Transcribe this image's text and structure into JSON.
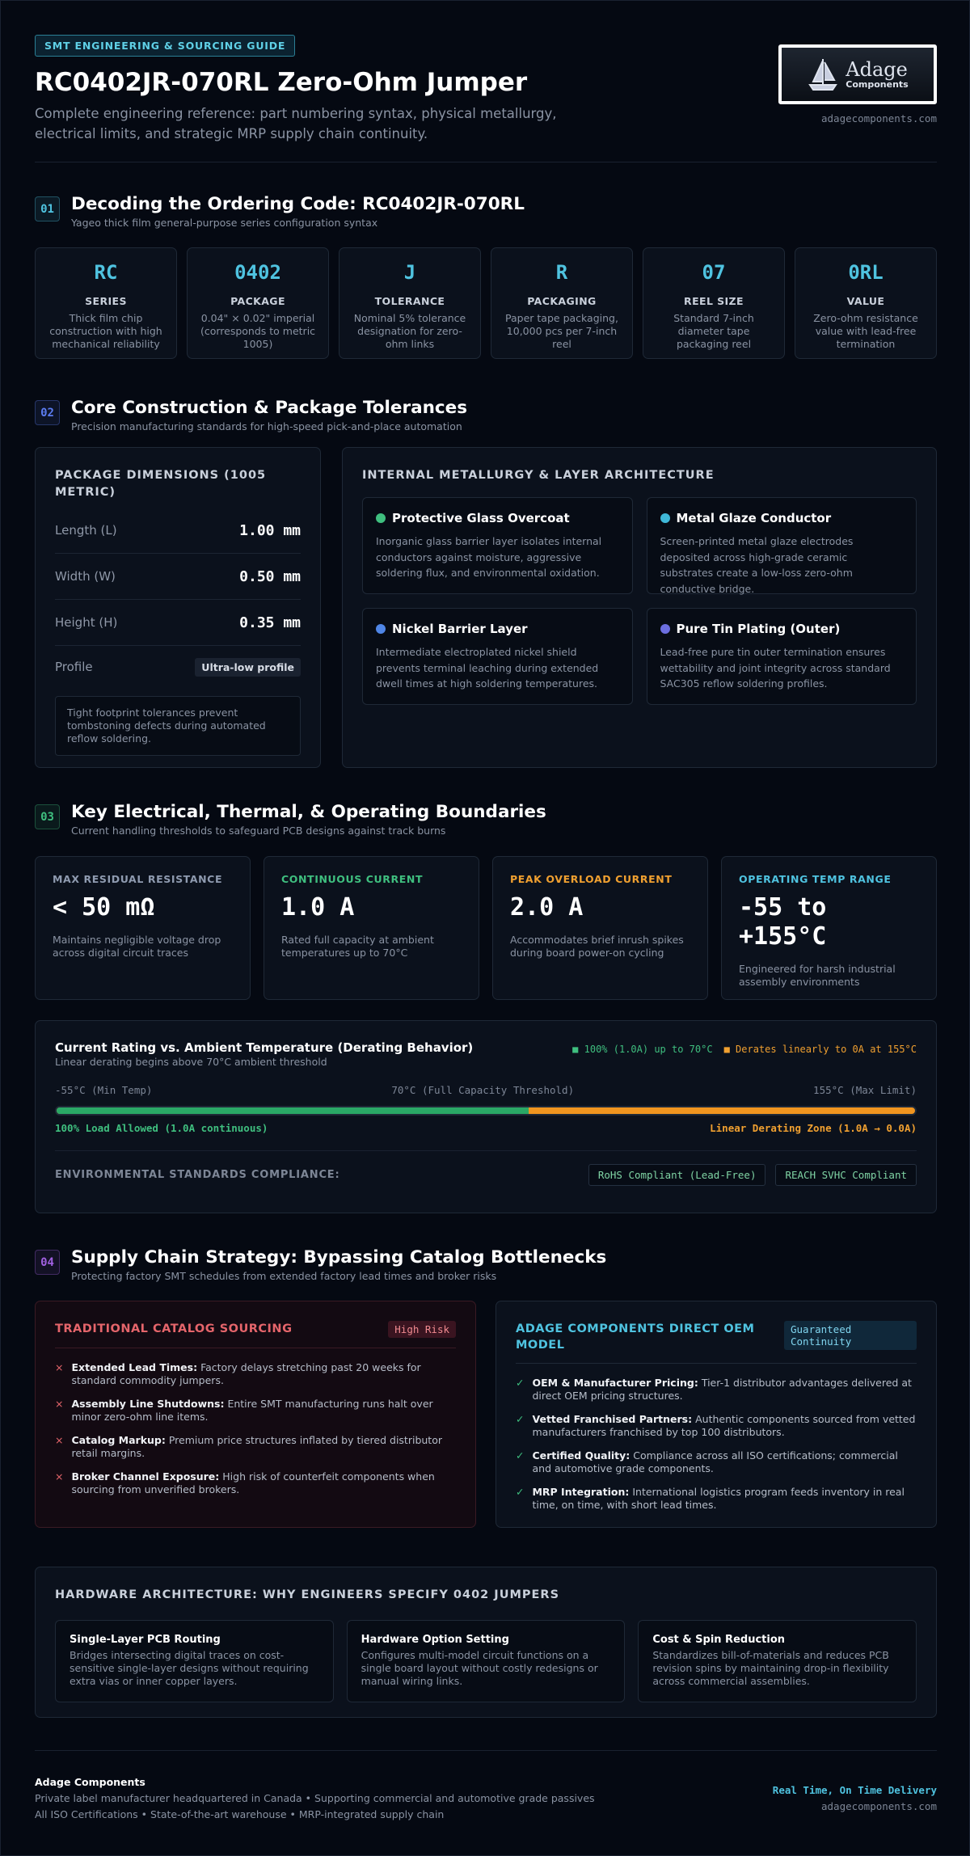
{
  "header": {
    "badge": "SMT ENGINEERING & SOURCING GUIDE",
    "title": "RC0402JR-070RL Zero-Ohm Jumper",
    "subtitle": "Complete engineering reference: part numbering syntax, physical metallurgy, electrical limits, and strategic MRP supply chain continuity.",
    "logo_name": "Adage",
    "logo_sub": "Components",
    "url": "adagecomponents.com"
  },
  "decoding": {
    "number": "01",
    "title": "Decoding the Ordering Code: RC0402JR-070RL",
    "subtitle": "Yageo thick film general-purpose series configuration syntax",
    "cards": [
      {
        "code": "RC",
        "label": "SERIES",
        "desc": "Thick film chip construction with high mechanical reliability"
      },
      {
        "code": "0402",
        "label": "PACKAGE",
        "desc": "0.04\" × 0.02\" imperial (corresponds to metric 1005)"
      },
      {
        "code": "J",
        "label": "TOLERANCE",
        "desc": "Nominal 5% tolerance designation for zero-ohm links"
      },
      {
        "code": "R",
        "label": "PACKAGING",
        "desc": "Paper tape packaging, 10,000 pcs per 7-inch reel"
      },
      {
        "code": "07",
        "label": "REEL SIZE",
        "desc": "Standard 7-inch diameter tape packaging reel"
      },
      {
        "code": "0RL",
        "label": "VALUE",
        "desc": "Zero-ohm resistance value with lead-free termination"
      }
    ]
  },
  "construction": {
    "number": "02",
    "title": "Core Construction & Package Tolerances",
    "subtitle": "Precision manufacturing standards for high-speed pick-and-place automation",
    "dimensions": {
      "title": "PACKAGE DIMENSIONS (1005 METRIC)",
      "rows": [
        {
          "label": "Length (L)",
          "value": "1.00 mm"
        },
        {
          "label": "Width (W)",
          "value": "0.50 mm"
        },
        {
          "label": "Height (H)",
          "value": "0.35 mm"
        }
      ],
      "profile_label": "Profile",
      "profile_value": "Ultra-low profile",
      "note": "Tight footprint tolerances prevent tombstoning defects during automated reflow soldering."
    },
    "metallurgy": {
      "title": "INTERNAL METALLURGY & LAYER ARCHITECTURE",
      "layers": [
        {
          "name": "Protective Glass Overcoat",
          "color": "#3fbf7f",
          "desc": "Inorganic glass barrier layer isolates internal conductors against moisture, aggressive soldering flux, and environmental oxidation."
        },
        {
          "name": "Metal Glaze Conductor",
          "color": "#3fb8d8",
          "desc": "Screen-printed metal glaze electrodes deposited across high-grade ceramic substrates create a low-loss zero-ohm conductive bridge."
        },
        {
          "name": "Nickel Barrier Layer",
          "color": "#4f86e6",
          "desc": "Intermediate electroplated nickel shield prevents terminal leaching during extended dwell times at high soldering temperatures."
        },
        {
          "name": "Pure Tin Plating (Outer)",
          "color": "#6c6fe0",
          "desc": "Lead-free pure tin outer termination ensures wettability and joint integrity across standard SAC305 reflow soldering profiles."
        }
      ]
    }
  },
  "electrical": {
    "number": "03",
    "title": "Key Electrical, Thermal, & Operating Boundaries",
    "subtitle": "Current handling thresholds to safeguard PCB designs against track burns",
    "metrics": [
      {
        "label": "MAX RESIDUAL RESISTANCE",
        "color": "#8f9bb0",
        "value": "< 50 mΩ",
        "desc": "Maintains negligible voltage drop across digital circuit traces"
      },
      {
        "label": "CONTINUOUS CURRENT",
        "color": "#3fbf7f",
        "value": "1.0 A",
        "desc": "Rated full capacity at ambient temperatures up to 70°C"
      },
      {
        "label": "PEAK OVERLOAD CURRENT",
        "color": "#f0a030",
        "value": "2.0 A",
        "desc": "Accommodates brief inrush spikes during board power-on cycling"
      },
      {
        "label": "OPERATING TEMP RANGE",
        "color": "#4fc3e0",
        "value": "-55 to +155°C",
        "desc": "Engineered for harsh industrial assembly environments"
      }
    ],
    "derating": {
      "title": "Current Rating vs. Ambient Temperature (Derating Behavior)",
      "subtitle": "Linear derating begins above 70°C ambient threshold",
      "legend_full": "100% (1.0A) up to 70°C",
      "legend_derate": "Derates linearly to 0A at 155°C",
      "scale_min": "-55°C (Min Temp)",
      "scale_mid": "70°C (Full Capacity Threshold)",
      "scale_max": "155°C (Max Limit)",
      "zone_full": "100% Load Allowed (1.0A continuous)",
      "zone_derate": "Linear Derating Zone (1.0A → 0.0A)",
      "compliance_label": "ENVIRONMENTAL STANDARDS COMPLIANCE:",
      "compliance": [
        "RoHS Compliant (Lead-Free)",
        "REACH SVHC Compliant"
      ]
    }
  },
  "supply": {
    "number": "04",
    "title": "Supply Chain Strategy: Bypassing Catalog Bottlenecks",
    "subtitle": "Protecting factory SMT schedules from extended factory lead times and broker risks",
    "traditional": {
      "title": "TRADITIONAL CATALOG SOURCING",
      "tag": "High Risk",
      "items": [
        {
          "bold": "Extended Lead Times:",
          "text": "Factory delays stretching past 20 weeks for standard commodity jumpers."
        },
        {
          "bold": "Assembly Line Shutdowns:",
          "text": "Entire SMT manufacturing runs halt over minor zero-ohm line items."
        },
        {
          "bold": "Catalog Markup:",
          "text": "Premium price structures inflated by tiered distributor retail margins."
        },
        {
          "bold": "Broker Channel Exposure:",
          "text": "High risk of counterfeit components when sourcing from unverified brokers."
        }
      ]
    },
    "adage": {
      "title": "ADAGE COMPONENTS DIRECT OEM MODEL",
      "tag": "Guaranteed Continuity",
      "items": [
        {
          "bold": "OEM & Manufacturer Pricing:",
          "text": "Tier-1 distributor advantages delivered at direct OEM pricing structures."
        },
        {
          "bold": "Vetted Franchised Partners:",
          "text": "Authentic components sourced from vetted manufacturers franchised by top 100 distributors."
        },
        {
          "bold": "Certified Quality:",
          "text": "Compliance across all ISO certifications; commercial and automotive grade components."
        },
        {
          "bold": "MRP Integration:",
          "text": "International logistics program feeds inventory in real time, on time, with short lead times."
        }
      ]
    }
  },
  "architecture": {
    "title": "HARDWARE ARCHITECTURE: WHY ENGINEERS SPECIFY 0402 JUMPERS",
    "cards": [
      {
        "title": "Single-Layer PCB Routing",
        "desc": "Bridges intersecting digital traces on cost-sensitive single-layer designs without requiring extra vias or inner copper layers."
      },
      {
        "title": "Hardware Option Setting",
        "desc": "Configures multi-model circuit functions on a single board layout without costly redesigns or manual wiring links."
      },
      {
        "title": "Cost & Spin Reduction",
        "desc": "Standardizes bill-of-materials and reduces PCB revision spins by maintaining drop-in flexibility across commercial assemblies."
      }
    ]
  },
  "footer": {
    "company": "Adage Components",
    "line1": "Private label manufacturer headquartered in Canada • Supporting commercial and automotive grade passives",
    "line2": "All ISO Certifications • State-of-the-art warehouse • MRP-integrated supply chain",
    "tagline": "Real Time, On Time Delivery",
    "url": "adagecomponents.com"
  }
}
